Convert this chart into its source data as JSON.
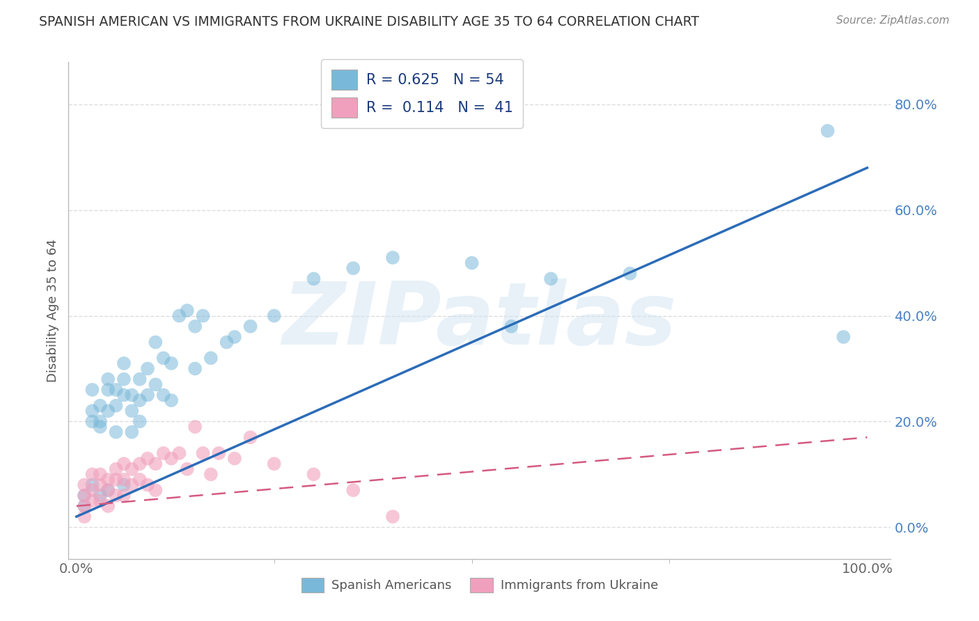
{
  "title": "SPANISH AMERICAN VS IMMIGRANTS FROM UKRAINE DISABILITY AGE 35 TO 64 CORRELATION CHART",
  "source": "Source: ZipAtlas.com",
  "ylabel": "Disability Age 35 to 64",
  "xlim": [
    -0.01,
    1.03
  ],
  "ylim": [
    -0.06,
    0.88
  ],
  "xticks": [
    0.0,
    1.0
  ],
  "xtick_labels": [
    "0.0%",
    "100.0%"
  ],
  "yticks": [
    0.0,
    0.2,
    0.4,
    0.6,
    0.8
  ],
  "ytick_labels": [
    "0.0%",
    "20.0%",
    "40.0%",
    "60.0%",
    "80.0%"
  ],
  "watermark": "ZIPatlas",
  "blue_color": "#7ab8d9",
  "pink_color": "#f0a0bc",
  "blue_line_color": "#2b6cb8",
  "pink_line_color": "#d45a80",
  "title_color": "#333333",
  "source_color": "#888888",
  "legend_text_color": "#1a3a7c",
  "ytick_color": "#4a80c0",
  "grid_color": "#dddddd",
  "background_color": "#ffffff",
  "legend_r1": "R = 0.625",
  "legend_n1": "N = 54",
  "legend_r2": "R =  0.114",
  "legend_n2": "N =  41",
  "bottom_legend1": "Spanish Americans",
  "bottom_legend2": "Immigrants from Ukraine",
  "blue_trend_x": [
    0.0,
    1.0
  ],
  "blue_trend_y": [
    0.02,
    0.68
  ],
  "pink_trend_x": [
    0.0,
    1.0
  ],
  "pink_trend_y": [
    0.04,
    0.17
  ],
  "sp_x": [
    0.01,
    0.01,
    0.02,
    0.02,
    0.02,
    0.02,
    0.03,
    0.03,
    0.03,
    0.03,
    0.04,
    0.04,
    0.04,
    0.04,
    0.05,
    0.05,
    0.05,
    0.06,
    0.06,
    0.06,
    0.06,
    0.07,
    0.07,
    0.07,
    0.08,
    0.08,
    0.08,
    0.09,
    0.09,
    0.1,
    0.1,
    0.11,
    0.11,
    0.12,
    0.12,
    0.13,
    0.14,
    0.15,
    0.15,
    0.16,
    0.17,
    0.19,
    0.2,
    0.22,
    0.25,
    0.3,
    0.35,
    0.4,
    0.5,
    0.55,
    0.6,
    0.7,
    0.95,
    0.97
  ],
  "sp_y": [
    0.06,
    0.04,
    0.26,
    0.22,
    0.2,
    0.08,
    0.23,
    0.2,
    0.19,
    0.06,
    0.28,
    0.26,
    0.22,
    0.07,
    0.26,
    0.23,
    0.18,
    0.31,
    0.28,
    0.25,
    0.08,
    0.25,
    0.22,
    0.18,
    0.28,
    0.24,
    0.2,
    0.3,
    0.25,
    0.35,
    0.27,
    0.32,
    0.25,
    0.31,
    0.24,
    0.4,
    0.41,
    0.38,
    0.3,
    0.4,
    0.32,
    0.35,
    0.36,
    0.38,
    0.4,
    0.47,
    0.49,
    0.51,
    0.5,
    0.38,
    0.47,
    0.48,
    0.75,
    0.36
  ],
  "uk_x": [
    0.01,
    0.01,
    0.01,
    0.01,
    0.02,
    0.02,
    0.02,
    0.03,
    0.03,
    0.03,
    0.04,
    0.04,
    0.04,
    0.05,
    0.05,
    0.05,
    0.06,
    0.06,
    0.06,
    0.07,
    0.07,
    0.08,
    0.08,
    0.09,
    0.09,
    0.1,
    0.1,
    0.11,
    0.12,
    0.13,
    0.14,
    0.15,
    0.16,
    0.17,
    0.18,
    0.2,
    0.22,
    0.25,
    0.3,
    0.35,
    0.4
  ],
  "uk_y": [
    0.08,
    0.06,
    0.04,
    0.02,
    0.1,
    0.07,
    0.05,
    0.1,
    0.08,
    0.05,
    0.09,
    0.07,
    0.04,
    0.11,
    0.09,
    0.06,
    0.12,
    0.09,
    0.06,
    0.11,
    0.08,
    0.12,
    0.09,
    0.13,
    0.08,
    0.12,
    0.07,
    0.14,
    0.13,
    0.14,
    0.11,
    0.19,
    0.14,
    0.1,
    0.14,
    0.13,
    0.17,
    0.12,
    0.1,
    0.07,
    0.02
  ]
}
